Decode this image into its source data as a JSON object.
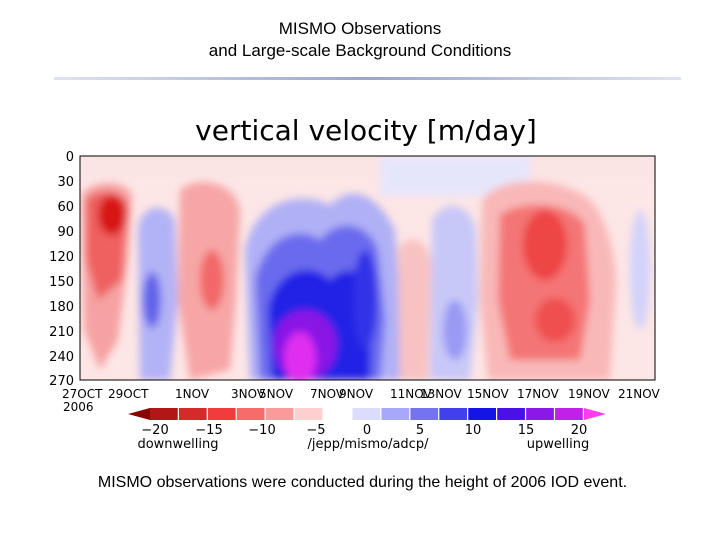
{
  "slide": {
    "title_line1": "MISMO Observations",
    "title_line2": "and Large-scale Background Conditions",
    "caption": "MISMO observations were conducted during the height of 2006 IOD event."
  },
  "chart_data": {
    "type": "heatmap",
    "title": "vertical velocity [m/day]",
    "xlabel": "",
    "ylabel": "",
    "y_ticks": [
      "0",
      "30",
      "60",
      "90",
      "120",
      "150",
      "180",
      "210",
      "240",
      "270"
    ],
    "x_ticks": [
      "27OCT",
      "29OCT",
      "1NOV",
      "3NOV",
      "5NOV",
      "7NOV",
      "9NOV",
      "11NOV",
      "13NOV",
      "15NOV",
      "17NOV",
      "19NOV",
      "21NOV"
    ],
    "year_label": "2006",
    "ylim": [
      0,
      270
    ],
    "colorbar": {
      "ticks": [
        "−20",
        "−15",
        "−10",
        "−5",
        "0",
        "5",
        "10",
        "15",
        "20"
      ],
      "left_label": "downwelling",
      "center_label": "/jepp/mismo/adcp/",
      "right_label": "upwelling",
      "colors": [
        "#8b0000",
        "#b01818",
        "#d42a2a",
        "#f03c3c",
        "#f76b6b",
        "#fa9a9a",
        "#fdd0d0",
        "#ffffff",
        "#dcdcff",
        "#a8a8f8",
        "#7474f2",
        "#4040ec",
        "#1414e6",
        "#4a10e6",
        "#8a18e6",
        "#c020e8",
        "#ff3cf0"
      ]
    },
    "features": [
      {
        "name": "downwelling-band-27oct",
        "date_range": [
          "27OCT",
          "29OCT"
        ],
        "depth_range": [
          40,
          250
        ],
        "peak": -20
      },
      {
        "name": "upwelling-band-30oct",
        "date_range": [
          "30OCT",
          "1NOV"
        ],
        "depth_range": [
          80,
          270
        ],
        "peak": 10
      },
      {
        "name": "downwelling-band-2nov",
        "date_range": [
          "1NOV",
          "4NOV"
        ],
        "depth_range": [
          30,
          260
        ],
        "peak": -10
      },
      {
        "name": "upwelling-core-6nov",
        "date_range": [
          "4NOV",
          "10NOV"
        ],
        "depth_range": [
          60,
          270
        ],
        "peak": 20
      },
      {
        "name": "downwelling-band-11nov",
        "date_range": [
          "10NOV",
          "12NOV"
        ],
        "depth_range": [
          40,
          270
        ],
        "peak": -7
      },
      {
        "name": "upwelling-band-13nov",
        "date_range": [
          "12NOV",
          "14NOV"
        ],
        "depth_range": [
          40,
          270
        ],
        "peak": 8
      },
      {
        "name": "downwelling-band-18nov",
        "date_range": [
          "16NOV",
          "20NOV"
        ],
        "depth_range": [
          50,
          270
        ],
        "peak": -14
      }
    ]
  }
}
